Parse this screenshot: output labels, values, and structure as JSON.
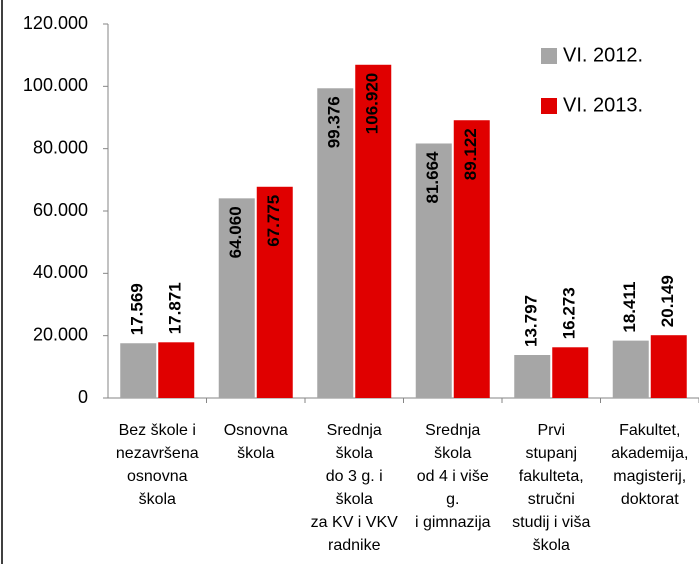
{
  "chart_data": {
    "type": "bar",
    "categories": [
      [
        "Bez škole i",
        "nezavršena",
        "osnovna",
        "škola"
      ],
      [
        "Osnovna",
        "škola"
      ],
      [
        "Srednja",
        "škola",
        "do 3 g. i",
        "škola",
        "za KV i VKV",
        "radnike"
      ],
      [
        "Srednja",
        "škola",
        "od 4 i više",
        "g.",
        "i gimnazija"
      ],
      [
        "Prvi",
        "stupanj",
        "fakulteta,",
        "stručni",
        "studij i viša",
        "škola"
      ],
      [
        "Fakultet,",
        "akademija,",
        "magisterij,",
        "doktorat"
      ]
    ],
    "series": [
      {
        "name": "VI. 2012.",
        "color": "#a6a6a6",
        "values": [
          17569,
          64060,
          99376,
          81664,
          13797,
          18411
        ],
        "value_labels": [
          "17.569",
          "64.060",
          "99.376",
          "81.664",
          "13.797",
          "18.411"
        ]
      },
      {
        "name": "VI. 2013.",
        "color": "#e00000",
        "values": [
          17871,
          67775,
          106920,
          89122,
          16273,
          20149
        ],
        "value_labels": [
          "17.871",
          "67.775",
          "106.920",
          "89.122",
          "16.273",
          "20.149"
        ]
      }
    ],
    "ylim": [
      0,
      120000
    ],
    "yticks": [
      0,
      {
        "value": 20000,
        "label": "20.000"
      },
      {
        "value": 40000,
        "label": "40.000"
      },
      {
        "value": 60000,
        "label": "60.000"
      },
      {
        "value": 80000,
        "label": "80.000"
      },
      {
        "value": 100000,
        "label": "100.000"
      },
      {
        "value": 120000,
        "label": "120.000"
      }
    ],
    "legend": "top-right",
    "grid": false
  }
}
